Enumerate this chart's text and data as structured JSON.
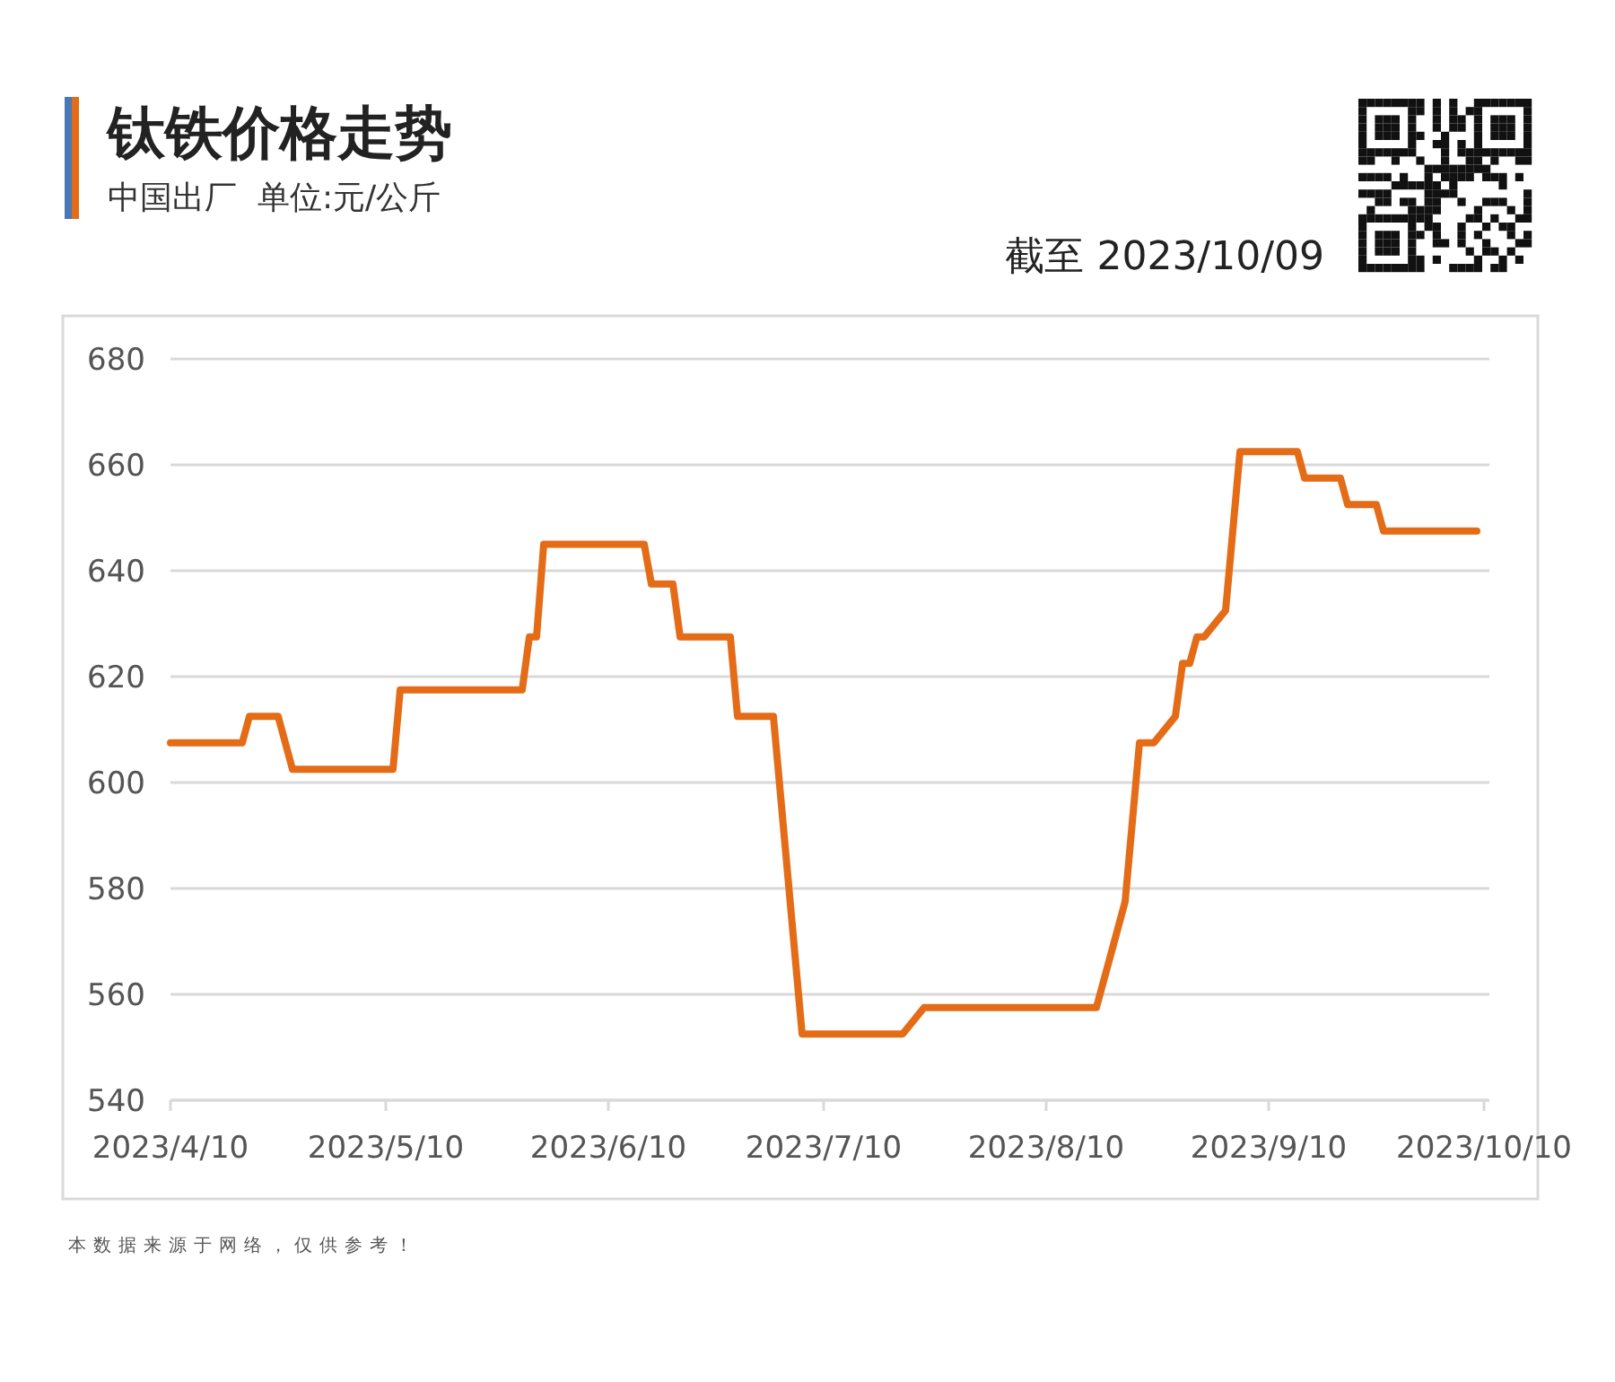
{
  "chart_data": {
    "type": "line",
    "title": "钛铁价格走势",
    "subtitle": "中国出厂  单位:元/公斤",
    "annotations": [
      "截至 2023/10/09",
      "本数据来源于网络，仅供参考！"
    ],
    "x": [
      "2023-04-10",
      "2023-04-20",
      "2023-04-21",
      "2023-04-25",
      "2023-04-27",
      "2023-05-11",
      "2023-05-12",
      "2023-05-29",
      "2023-05-30",
      "2023-05-31",
      "2023-06-01",
      "2023-06-15",
      "2023-06-16",
      "2023-06-19",
      "2023-06-20",
      "2023-06-27",
      "2023-06-28",
      "2023-07-03",
      "2023-07-07",
      "2023-07-21",
      "2023-07-24",
      "2023-08-17",
      "2023-08-21",
      "2023-08-23",
      "2023-08-25",
      "2023-08-28",
      "2023-08-29",
      "2023-08-30",
      "2023-08-31",
      "2023-09-01",
      "2023-09-04",
      "2023-09-06",
      "2023-09-14",
      "2023-09-15",
      "2023-09-20",
      "2023-09-21",
      "2023-09-25",
      "2023-09-26",
      "2023-10-09"
    ],
    "series": [
      {
        "color": "#e46c17",
        "values": [
          607.5,
          607.5,
          612.5,
          612.5,
          602.5,
          602.5,
          617.5,
          617.5,
          627.5,
          627.5,
          645,
          645,
          637.5,
          637.5,
          627.5,
          627.5,
          612.5,
          612.5,
          552.5,
          552.5,
          557.5,
          557.5,
          577.5,
          607.5,
          607.5,
          612.5,
          622.5,
          622.5,
          627.5,
          627.5,
          632.5,
          662.5,
          662.5,
          657.5,
          657.5,
          652.5,
          652.5,
          647.5,
          647.5
        ]
      }
    ],
    "xlim": [
      "2023-04-10",
      "2023-10-10"
    ],
    "xticks": [
      {
        "value": "2023-04-10",
        "label": "2023/4/10"
      },
      {
        "value": "2023-05-10",
        "label": "2023/5/10"
      },
      {
        "value": "2023-06-10",
        "label": "2023/6/10"
      },
      {
        "value": "2023-07-10",
        "label": "2023/7/10"
      },
      {
        "value": "2023-08-10",
        "label": "2023/8/10"
      },
      {
        "value": "2023-09-10",
        "label": "2023/9/10"
      },
      {
        "value": "2023-10-10",
        "label": "2023/10/10"
      }
    ],
    "ylim": [
      540,
      680
    ],
    "yticks": [
      540,
      560,
      580,
      600,
      620,
      640,
      660,
      680
    ],
    "grid": "y",
    "marker": "none",
    "line_style": "solid"
  }
}
